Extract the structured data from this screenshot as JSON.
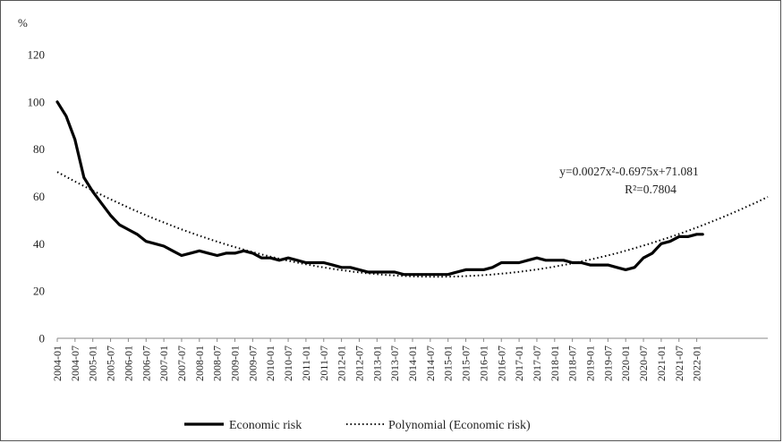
{
  "chart_data": {
    "type": "line",
    "ylabel": "%",
    "ylim": [
      0,
      120
    ],
    "yticks": [
      0,
      20,
      40,
      60,
      80,
      100,
      120
    ],
    "grid": false,
    "legend_position": "bottom",
    "x_tick_labels": [
      "2004-01",
      "2004-07",
      "2005-01",
      "2005-07",
      "2006-01",
      "2006-07",
      "2007-01",
      "2007-07",
      "2008-01",
      "2008-07",
      "2009-01",
      "2009-07",
      "2010-01",
      "2010-07",
      "2011-01",
      "2011-07",
      "2012-01",
      "2012-07",
      "2013-01",
      "2013-07",
      "2014-01",
      "2014-07",
      "2015-01",
      "2015-07",
      "2016-01",
      "2016-07",
      "2017-01",
      "2017-07",
      "2018-01",
      "2018-07",
      "2019-01",
      "2019-07",
      "2020-01",
      "2020-07",
      "2021-01",
      "2021-07",
      "2022-01"
    ],
    "series": [
      {
        "name": "Economic risk",
        "style": "solid",
        "color": "#000000",
        "x": [
          "2004-01",
          "2004-04",
          "2004-07",
          "2004-10",
          "2005-01",
          "2005-04",
          "2005-07",
          "2005-10",
          "2006-01",
          "2006-04",
          "2006-07",
          "2006-10",
          "2007-01",
          "2007-04",
          "2007-07",
          "2007-10",
          "2008-01",
          "2008-04",
          "2008-07",
          "2008-10",
          "2009-01",
          "2009-04",
          "2009-07",
          "2009-10",
          "2010-01",
          "2010-04",
          "2010-07",
          "2010-10",
          "2011-01",
          "2011-04",
          "2011-07",
          "2011-10",
          "2012-01",
          "2012-04",
          "2012-07",
          "2012-10",
          "2013-01",
          "2013-04",
          "2013-07",
          "2013-10",
          "2014-01",
          "2014-04",
          "2014-07",
          "2014-10",
          "2015-01",
          "2015-04",
          "2015-07",
          "2015-10",
          "2016-01",
          "2016-04",
          "2016-07",
          "2016-10",
          "2017-01",
          "2017-04",
          "2017-07",
          "2017-10",
          "2018-01",
          "2018-04",
          "2018-07",
          "2018-10",
          "2019-01",
          "2019-04",
          "2019-07",
          "2019-10",
          "2020-01",
          "2020-04",
          "2020-07",
          "2020-10",
          "2021-01",
          "2021-04",
          "2021-07",
          "2021-10",
          "2022-01",
          "2022-03"
        ],
        "values": [
          100,
          94,
          84,
          68,
          62,
          57,
          52,
          48,
          46,
          44,
          41,
          40,
          39,
          37,
          35,
          36,
          37,
          36,
          35,
          36,
          36,
          37,
          36,
          34,
          34,
          33,
          34,
          33,
          32,
          32,
          32,
          31,
          30,
          30,
          29,
          28,
          28,
          28,
          28,
          27,
          27,
          27,
          27,
          27,
          27,
          28,
          29,
          29,
          29,
          30,
          32,
          32,
          32,
          33,
          34,
          33,
          33,
          33,
          32,
          32,
          31,
          31,
          31,
          30,
          29,
          30,
          34,
          36,
          40,
          41,
          43,
          43,
          44,
          44
        ]
      },
      {
        "name": "Polynomial (Economic risk)",
        "style": "dotted",
        "color": "#000000",
        "trendline": {
          "kind": "polynomial",
          "order": 2,
          "coefficients": [
            0.0027,
            -0.6975,
            71.081
          ]
        }
      }
    ],
    "annotations": [
      "y=0.0027x²-0.6975x+71.081",
      "R²=0.7804"
    ]
  }
}
